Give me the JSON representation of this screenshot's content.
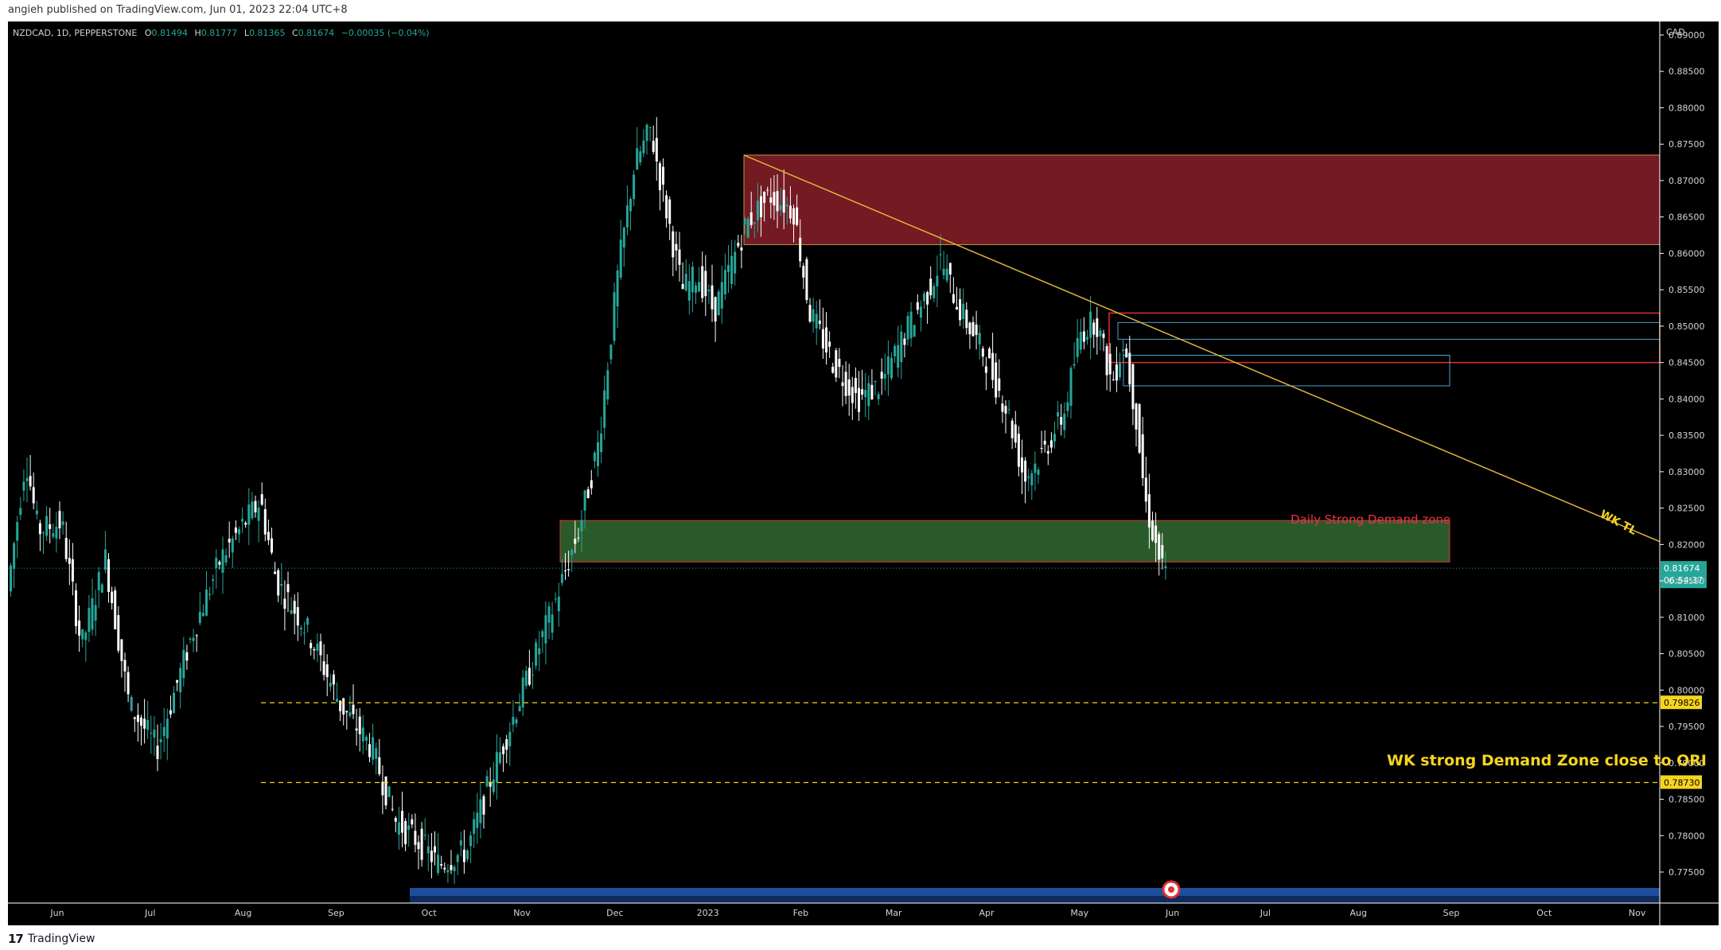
{
  "publisher_line": "angieh published on TradingView.com, Jun 01, 2023 22:04 UTC+8",
  "brand": "TradingView",
  "symbol_line": {
    "symbol": "NZDCAD, 1D, PEPPERSTONE",
    "open_label": "O",
    "open": "0.81494",
    "high_label": "H",
    "high": "0.81777",
    "low_label": "L",
    "low": "0.81365",
    "close_label": "C",
    "close": "0.81674",
    "change": "−0.00035 (−0.04%)"
  },
  "currency": "CAD",
  "price_ticks": [
    "0.89000",
    "0.88500",
    "0.88000",
    "0.87500",
    "0.87000",
    "0.86500",
    "0.86000",
    "0.85500",
    "0.85000",
    "0.84500",
    "0.84000",
    "0.83500",
    "0.83000",
    "0.82500",
    "0.82000",
    "0.81500",
    "0.81000",
    "0.80500",
    "0.80000",
    "0.79500",
    "0.79000",
    "0.78500",
    "0.78000",
    "0.77500"
  ],
  "time_ticks": [
    "Jun",
    "Jul",
    "Aug",
    "Sep",
    "Oct",
    "Nov",
    "Dec",
    "2023",
    "Feb",
    "Mar",
    "Apr",
    "May",
    "Jun",
    "Jul",
    "Aug",
    "Sep",
    "Oct",
    "Nov"
  ],
  "last_price": {
    "price": "0.81674",
    "countdown": "06:54:37",
    "color": "#26a69a"
  },
  "level_labels": [
    {
      "price": "0.79826",
      "color": "#f7d51e"
    },
    {
      "price": "0.78730",
      "color": "#f7d51e"
    }
  ],
  "annotations": {
    "daily_zone": "Daily Strong Demand zone",
    "weekly_zone": "WK strong Demand Zone close to ORI",
    "trendline": "WK TL"
  },
  "colors": {
    "bull": "#26a69a",
    "bear": "#ffffff",
    "supply_zone": "#7a1c24",
    "demand_zone": "#2a5a2a",
    "trendline": "#e0b53a",
    "level_line": "#f7d51e",
    "red_box": "#e03030",
    "blue_box": "#4aa0d0"
  },
  "chart_data": {
    "type": "candlestick",
    "symbol": "NZDCAD",
    "timeframe": "1D",
    "ylim": [
      0.7725,
      0.8915
    ],
    "series": [
      {
        "month": "Jun 2022",
        "open": 0.812,
        "close": 0.822,
        "high": 0.835,
        "low": 0.81
      },
      {
        "month": "Jul 2022",
        "open": 0.822,
        "close": 0.8,
        "high": 0.826,
        "low": 0.791
      },
      {
        "month": "Aug 2022",
        "open": 0.8,
        "close": 0.81,
        "high": 0.825,
        "low": 0.798
      },
      {
        "month": "Sep 2022",
        "open": 0.81,
        "close": 0.79,
        "high": 0.815,
        "low": 0.785
      },
      {
        "month": "Oct 2022",
        "open": 0.79,
        "close": 0.778,
        "high": 0.789,
        "low": 0.772
      },
      {
        "month": "Nov 2022",
        "open": 0.778,
        "close": 0.818,
        "high": 0.822,
        "low": 0.776
      },
      {
        "month": "Dec 2022",
        "open": 0.818,
        "close": 0.866,
        "high": 0.882,
        "low": 0.816
      },
      {
        "month": "Jan 2023",
        "open": 0.866,
        "close": 0.855,
        "high": 0.872,
        "low": 0.843
      },
      {
        "month": "Feb 2023",
        "open": 0.855,
        "close": 0.844,
        "high": 0.867,
        "low": 0.835
      },
      {
        "month": "Mar 2023",
        "open": 0.844,
        "close": 0.849,
        "high": 0.862,
        "low": 0.837
      },
      {
        "month": "Apr 2023",
        "open": 0.849,
        "close": 0.834,
        "high": 0.853,
        "low": 0.827
      },
      {
        "month": "May 2023",
        "open": 0.834,
        "close": 0.821,
        "high": 0.854,
        "low": 0.816
      },
      {
        "month": "Jun 2023",
        "open": 0.815,
        "close": 0.817,
        "high": 0.818,
        "low": 0.814
      }
    ],
    "zones": [
      {
        "name": "supply zone",
        "from": "Jan 2023",
        "to": "right edge",
        "top": 0.8735,
        "bottom": 0.8612
      },
      {
        "name": "Daily Strong Demand zone",
        "from": "Nov 2022",
        "to": "Aug 2023",
        "top": 0.8233,
        "bottom": 0.8176
      },
      {
        "name": "red box",
        "from": "May 2023",
        "to": "right edge",
        "top": 0.8518,
        "bottom": 0.845
      },
      {
        "name": "blue box 1",
        "from": "May 2023",
        "to": "right edge",
        "top": 0.8505,
        "bottom": 0.8482
      },
      {
        "name": "blue box 2",
        "from": "May 2023",
        "to": "Aug 2023",
        "top": 0.846,
        "bottom": 0.8418
      }
    ],
    "trendline": {
      "start": {
        "date": "Jan 2023",
        "price": 0.8735
      },
      "end": {
        "date": "Nov 2023",
        "price": 0.8204
      }
    },
    "horizontal_levels": [
      0.79826,
      0.7873
    ],
    "grid": false
  }
}
